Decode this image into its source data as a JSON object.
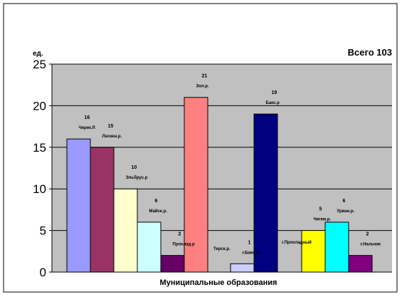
{
  "chart_data": {
    "type": "bar",
    "total_label": "Всего 103",
    "ylabel": "ед.",
    "xlabel": "Муниципальные образования",
    "ylim": [
      0,
      25
    ],
    "yticks": [
      0,
      5,
      10,
      15,
      20,
      25
    ],
    "grid": true,
    "bars": [
      {
        "group": 1,
        "value": 16,
        "label": "Черек.Р.",
        "color": "#9999ff"
      },
      {
        "group": 1,
        "value": 15,
        "label": "Лескен.р.",
        "color": "#993366"
      },
      {
        "group": 1,
        "value": 10,
        "label": "Эльбрус.р",
        "color": "#ffffcc"
      },
      {
        "group": 1,
        "value": 6,
        "label": "Майск.р.",
        "color": "#ccffff"
      },
      {
        "group": 1,
        "value": 2,
        "label": "Прохлад.р",
        "color": "#660066"
      },
      {
        "group": 1,
        "value": 21,
        "label": "Зол.р.",
        "color": "#ff8080"
      },
      {
        "group": 2,
        "value": 1,
        "label": "г.Баксан",
        "color": "#ccccff"
      },
      {
        "group": 2,
        "value": 19,
        "label": "Бакс.р",
        "color": "#000080"
      },
      {
        "group": 3,
        "value": 5,
        "label": "Чегем.р.",
        "color": "#ffff00"
      },
      {
        "group": 3,
        "value": 6,
        "label": "Урван.р.",
        "color": "#00ffff"
      },
      {
        "group": 3,
        "value": 2,
        "label": "г.Нальчик",
        "color": "#800080"
      }
    ],
    "extra_labels": [
      "Терск.р.",
      "г.Прохладный"
    ],
    "colors": {
      "plot_bg": "#c0c0c0",
      "frame": "#000000",
      "grid": "#000000"
    }
  }
}
